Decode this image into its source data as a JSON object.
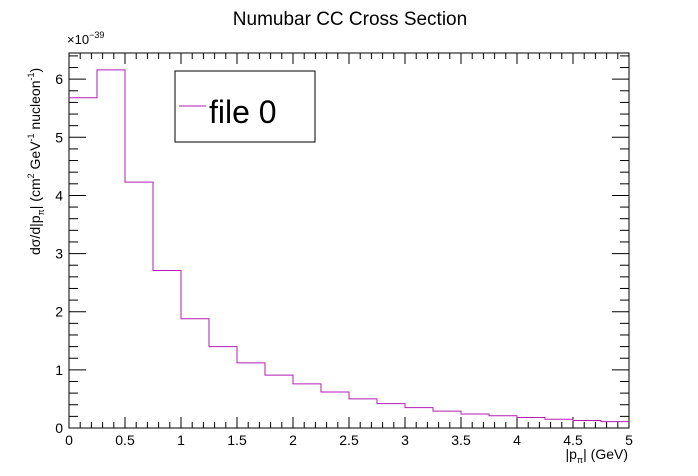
{
  "chart_data": {
    "type": "histogram",
    "title": "Numubar CC Cross Section",
    "xlabel": {
      "main": "|p",
      "sub": "π",
      "tail": "| (GeV)"
    },
    "ylabel": {
      "a": "dσ/d|p",
      "a_sub": "π",
      "b": "| (cm",
      "b_sup": "2",
      "c": " GeV",
      "c_sup": "-1",
      "d": " nucleon",
      "d_sup": "-1",
      "e": ")"
    },
    "exponent_label": {
      "base": "×10",
      "power": "−39"
    },
    "xlim": [
      0,
      5
    ],
    "ylim": [
      0,
      6.45
    ],
    "x_ticks": [
      "0",
      "0.5",
      "1",
      "1.5",
      "2",
      "2.5",
      "3",
      "3.5",
      "4",
      "4.5",
      "5"
    ],
    "y_ticks": [
      "0",
      "1",
      "2",
      "3",
      "4",
      "5",
      "6"
    ],
    "line_color": "#b41db4",
    "bin_width": 0.25,
    "bin_edges_start": 0,
    "values": [
      5.68,
      6.16,
      4.23,
      2.71,
      1.88,
      1.4,
      1.12,
      0.91,
      0.76,
      0.62,
      0.5,
      0.42,
      0.35,
      0.29,
      0.24,
      0.21,
      0.18,
      0.15,
      0.13,
      0.11
    ],
    "legend": {
      "entries": [
        "file 0"
      ],
      "position": "top-left"
    }
  }
}
